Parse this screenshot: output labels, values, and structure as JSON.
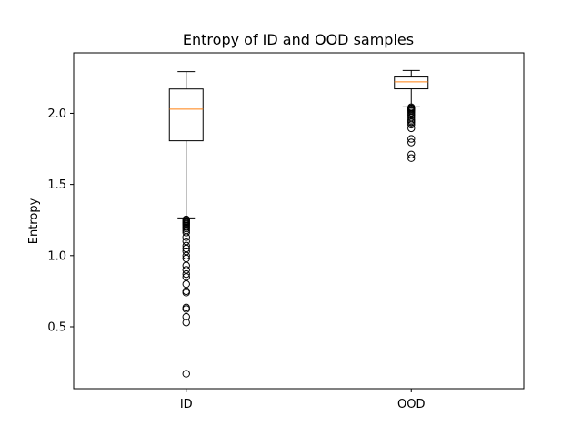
{
  "chart_data": {
    "type": "box",
    "title": "Entropy of ID and OOD samples",
    "xlabel": "",
    "ylabel": "Entropy",
    "categories": [
      "ID",
      "OOD"
    ],
    "ylim": [
      0.065,
      2.425
    ],
    "yticks": [
      0.5,
      1.0,
      1.5,
      2.0
    ],
    "ytick_labels": [
      "0.5",
      "1.0",
      "1.5",
      "2.0"
    ],
    "grid": false,
    "legend": "none",
    "colors": {
      "box": "#000000",
      "median": "#ff7f0e",
      "background": "#ffffff"
    },
    "boxes": [
      {
        "label": "ID",
        "whisker_low": 1.265,
        "q1": 1.807,
        "median": 2.029,
        "q3": 2.171,
        "whisker_high": 2.293,
        "outliers": [
          1.254,
          1.247,
          1.24,
          1.233,
          1.226,
          1.219,
          1.21,
          1.2,
          1.19,
          1.177,
          1.162,
          1.13,
          1.1,
          1.07,
          1.05,
          1.03,
          1.0,
          0.98,
          0.93,
          0.9,
          0.87,
          0.85,
          0.8,
          0.75,
          0.74,
          0.635,
          0.625,
          0.57,
          0.53,
          0.17
        ]
      },
      {
        "label": "OOD",
        "whisker_low": 2.045,
        "q1": 2.172,
        "median": 2.221,
        "q3": 2.255,
        "whisker_high": 2.301,
        "outliers": [
          2.042,
          2.035,
          2.03,
          2.022,
          2.015,
          2.005,
          1.995,
          1.985,
          1.97,
          1.955,
          1.945,
          1.935,
          1.92,
          1.895,
          1.82,
          1.795,
          1.71,
          1.685
        ]
      }
    ]
  }
}
